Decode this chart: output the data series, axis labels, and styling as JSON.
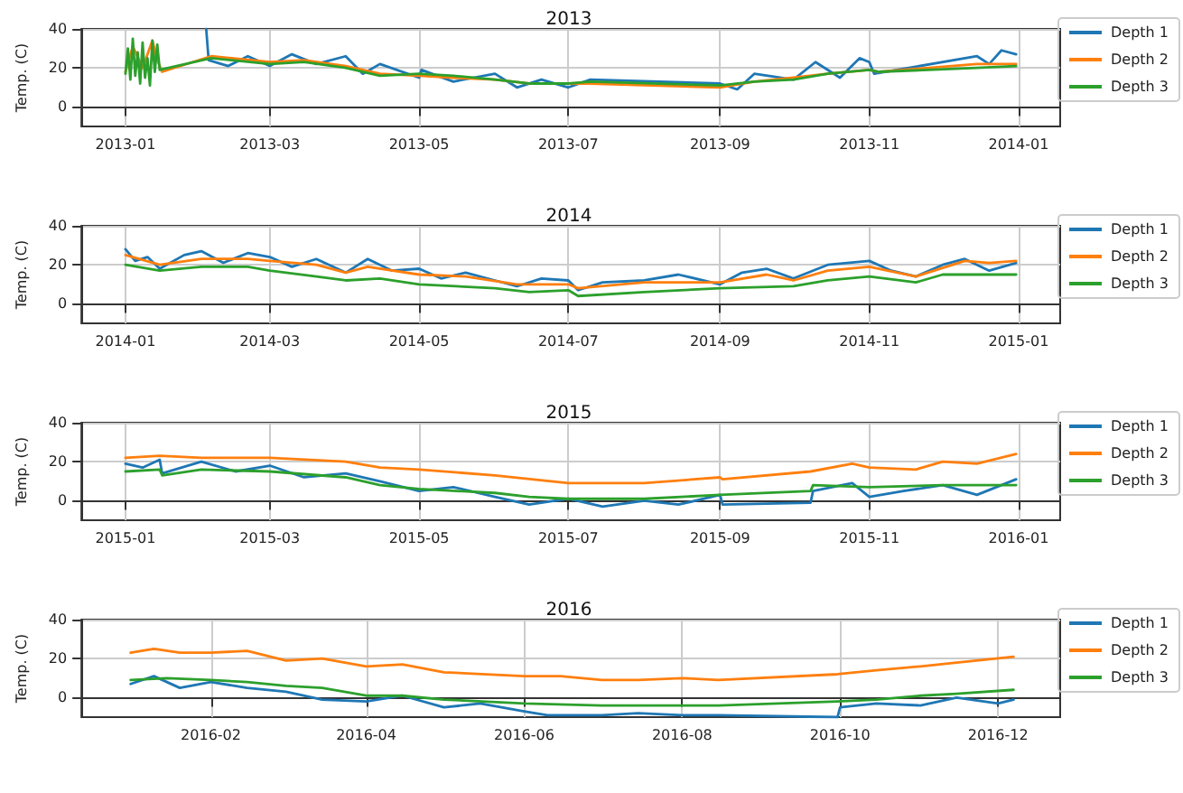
{
  "chart_data": [
    {
      "type": "line",
      "title": "2013",
      "ylabel": "Temp. (C)",
      "ylim": [
        -10,
        40
      ],
      "yticks": [
        0,
        20,
        40
      ],
      "xlim": [
        "2012-12-14",
        "2014-01-18"
      ],
      "xticks": [
        "2013-01",
        "2013-03",
        "2013-05",
        "2013-07",
        "2013-09",
        "2013-11",
        "2014-01"
      ],
      "grid": true,
      "legend": "right",
      "series": [
        {
          "name": "Depth 1",
          "color": "#1f77b4",
          "x": [
            "2013-02-03",
            "2013-02-04",
            "2013-02-12",
            "2013-02-20",
            "2013-03-01",
            "2013-03-10",
            "2013-03-20",
            "2013-04-01",
            "2013-04-08",
            "2013-04-15",
            "2013-05-01",
            "2013-05-02",
            "2013-05-15",
            "2013-06-01",
            "2013-06-10",
            "2013-06-20",
            "2013-07-01",
            "2013-07-10",
            "2013-09-01",
            "2013-09-08",
            "2013-09-15",
            "2013-10-01",
            "2013-10-10",
            "2013-10-20",
            "2013-10-28",
            "2013-11-01",
            "2013-11-03",
            "2013-12-15",
            "2013-12-20",
            "2013-12-25",
            "2013-12-31"
          ],
          "values": [
            40,
            24,
            21,
            26,
            21,
            27,
            22,
            26,
            17,
            22,
            15,
            19,
            13,
            17,
            10,
            14,
            10,
            14,
            12,
            9,
            17,
            14,
            23,
            15,
            25,
            23,
            17,
            26,
            22,
            29,
            27
          ]
        },
        {
          "name": "Depth 2",
          "color": "#ff7f0e",
          "x": [
            "2013-01-01",
            "2013-01-04",
            "2013-01-08",
            "2013-01-12",
            "2013-01-14",
            "2013-01-16",
            "2013-02-05",
            "2013-03-01",
            "2013-03-15",
            "2013-04-01",
            "2013-04-15",
            "2013-05-01",
            "2013-05-15",
            "2013-06-01",
            "2013-06-15",
            "2013-07-01",
            "2013-07-10",
            "2013-09-01",
            "2013-09-15",
            "2013-10-01",
            "2013-10-15",
            "2013-11-01",
            "2013-11-05",
            "2013-12-15",
            "2013-12-31"
          ],
          "values": [
            18,
            31,
            20,
            34,
            24,
            18,
            26,
            23,
            24,
            21,
            17,
            16,
            15,
            14,
            12,
            12,
            12,
            10,
            13,
            15,
            17,
            19,
            18,
            22,
            22
          ]
        },
        {
          "name": "Depth 3",
          "color": "#2ca02c",
          "x": [
            "2013-01-01",
            "2013-01-02",
            "2013-01-03",
            "2013-01-04",
            "2013-01-05",
            "2013-01-06",
            "2013-01-07",
            "2013-01-08",
            "2013-01-09",
            "2013-01-10",
            "2013-01-11",
            "2013-01-12",
            "2013-01-13",
            "2013-01-14",
            "2013-01-15",
            "2013-02-05",
            "2013-03-01",
            "2013-03-15",
            "2013-04-01",
            "2013-04-15",
            "2013-05-01",
            "2013-05-15",
            "2013-06-01",
            "2013-06-15",
            "2013-07-01",
            "2013-07-10",
            "2013-09-01",
            "2013-09-15",
            "2013-10-01",
            "2013-10-15",
            "2013-11-01",
            "2013-11-05",
            "2013-12-15",
            "2013-12-31"
          ],
          "values": [
            17,
            30,
            14,
            35,
            16,
            28,
            12,
            33,
            15,
            25,
            11,
            34,
            18,
            32,
            19,
            25,
            22,
            23,
            20,
            16,
            17,
            16,
            14,
            12,
            12,
            13,
            11,
            13,
            14,
            17,
            19,
            18,
            20,
            21
          ]
        }
      ]
    },
    {
      "type": "line",
      "title": "2014",
      "ylabel": "Temp. (C)",
      "ylim": [
        -10,
        40
      ],
      "yticks": [
        0,
        20,
        40
      ],
      "xlim": [
        "2013-12-14",
        "2015-01-18"
      ],
      "xticks": [
        "2014-01",
        "2014-03",
        "2014-05",
        "2014-07",
        "2014-09",
        "2014-11",
        "2015-01"
      ],
      "grid": true,
      "legend": "right",
      "series": [
        {
          "name": "Depth 1",
          "color": "#1f77b4",
          "x": [
            "2014-01-01",
            "2014-01-05",
            "2014-01-10",
            "2014-01-15",
            "2014-01-25",
            "2014-02-01",
            "2014-02-10",
            "2014-02-20",
            "2014-03-01",
            "2014-03-10",
            "2014-03-20",
            "2014-04-01",
            "2014-04-10",
            "2014-04-20",
            "2014-05-01",
            "2014-05-10",
            "2014-05-20",
            "2014-06-01",
            "2014-06-10",
            "2014-06-20",
            "2014-07-01",
            "2014-07-05",
            "2014-07-15",
            "2014-08-01",
            "2014-08-15",
            "2014-09-01",
            "2014-09-10",
            "2014-09-20",
            "2014-10-01",
            "2014-10-15",
            "2014-11-01",
            "2014-11-10",
            "2014-11-20",
            "2014-12-01",
            "2014-12-10",
            "2014-12-20",
            "2014-12-31"
          ],
          "values": [
            28,
            22,
            24,
            18,
            25,
            27,
            21,
            26,
            24,
            19,
            23,
            16,
            23,
            17,
            18,
            13,
            16,
            12,
            9,
            13,
            12,
            7,
            11,
            12,
            15,
            10,
            16,
            18,
            13,
            20,
            22,
            17,
            14,
            20,
            23,
            17,
            21
          ]
        },
        {
          "name": "Depth 2",
          "color": "#ff7f0e",
          "x": [
            "2014-01-01",
            "2014-01-15",
            "2014-02-01",
            "2014-02-20",
            "2014-03-01",
            "2014-03-20",
            "2014-04-01",
            "2014-04-10",
            "2014-05-01",
            "2014-05-20",
            "2014-06-10",
            "2014-07-01",
            "2014-07-05",
            "2014-08-01",
            "2014-09-01",
            "2014-09-20",
            "2014-10-01",
            "2014-10-15",
            "2014-11-01",
            "2014-11-20",
            "2014-12-10",
            "2014-12-20",
            "2014-12-31"
          ],
          "values": [
            25,
            20,
            23,
            23,
            22,
            20,
            16,
            19,
            15,
            14,
            10,
            10,
            8,
            11,
            11,
            15,
            12,
            17,
            19,
            14,
            22,
            21,
            22
          ]
        },
        {
          "name": "Depth 3",
          "color": "#2ca02c",
          "x": [
            "2014-01-01",
            "2014-01-15",
            "2014-02-01",
            "2014-02-20",
            "2014-03-01",
            "2014-03-20",
            "2014-04-01",
            "2014-04-15",
            "2014-05-01",
            "2014-06-01",
            "2014-06-15",
            "2014-07-01",
            "2014-07-05",
            "2014-08-01",
            "2014-09-01",
            "2014-10-01",
            "2014-10-15",
            "2014-11-01",
            "2014-11-20",
            "2014-12-01",
            "2014-12-31"
          ],
          "values": [
            20,
            17,
            19,
            19,
            17,
            14,
            12,
            13,
            10,
            8,
            6,
            7,
            4,
            6,
            8,
            9,
            12,
            14,
            11,
            15,
            15
          ]
        }
      ]
    },
    {
      "type": "line",
      "title": "2015",
      "ylabel": "Temp. (C)",
      "ylim": [
        -10,
        40
      ],
      "yticks": [
        0,
        20,
        40
      ],
      "xlim": [
        "2014-12-14",
        "2016-01-18"
      ],
      "xticks": [
        "2015-01",
        "2015-03",
        "2015-05",
        "2015-07",
        "2015-09",
        "2015-11",
        "2016-01"
      ],
      "grid": true,
      "legend": "right",
      "series": [
        {
          "name": "Depth 1",
          "color": "#1f77b4",
          "x": [
            "2015-01-01",
            "2015-01-08",
            "2015-01-15",
            "2015-01-16",
            "2015-02-01",
            "2015-02-15",
            "2015-03-01",
            "2015-03-15",
            "2015-04-01",
            "2015-04-15",
            "2015-05-01",
            "2015-05-15",
            "2015-06-01",
            "2015-06-15",
            "2015-07-01",
            "2015-07-15",
            "2015-08-01",
            "2015-08-15",
            "2015-09-01",
            "2015-09-02",
            "2015-10-08",
            "2015-10-09",
            "2015-10-25",
            "2015-11-01",
            "2015-11-15",
            "2015-12-01",
            "2015-12-15",
            "2015-12-31"
          ],
          "values": [
            19,
            17,
            21,
            14,
            20,
            15,
            18,
            12,
            14,
            10,
            5,
            7,
            2,
            -2,
            1,
            -3,
            0,
            -2,
            3,
            -2,
            -1,
            5,
            9,
            2,
            5,
            8,
            3,
            11
          ]
        },
        {
          "name": "Depth 2",
          "color": "#ff7f0e",
          "x": [
            "2015-01-01",
            "2015-01-15",
            "2015-02-01",
            "2015-03-01",
            "2015-04-01",
            "2015-04-15",
            "2015-05-01",
            "2015-06-01",
            "2015-07-01",
            "2015-08-01",
            "2015-09-01",
            "2015-09-02",
            "2015-10-08",
            "2015-10-25",
            "2015-11-01",
            "2015-11-20",
            "2015-12-01",
            "2015-12-15",
            "2015-12-31"
          ],
          "values": [
            22,
            23,
            22,
            22,
            20,
            17,
            16,
            13,
            9,
            9,
            12,
            11,
            15,
            19,
            17,
            16,
            20,
            19,
            24
          ]
        },
        {
          "name": "Depth 3",
          "color": "#2ca02c",
          "x": [
            "2015-01-01",
            "2015-01-15",
            "2015-01-16",
            "2015-02-01",
            "2015-03-01",
            "2015-04-01",
            "2015-04-15",
            "2015-05-01",
            "2015-06-01",
            "2015-06-15",
            "2015-07-01",
            "2015-08-01",
            "2015-09-01",
            "2015-10-08",
            "2015-10-09",
            "2015-11-01",
            "2015-12-01",
            "2015-12-31"
          ],
          "values": [
            15,
            16,
            13,
            16,
            15,
            12,
            8,
            6,
            4,
            2,
            1,
            1,
            3,
            5,
            8,
            7,
            8,
            8
          ]
        }
      ]
    },
    {
      "type": "line",
      "title": "2016",
      "ylabel": "Temp. (C)",
      "ylim": [
        -10,
        40
      ],
      "yticks": [
        0,
        20,
        40
      ],
      "xlim": [
        "2015-12-13",
        "2016-12-25"
      ],
      "xticks": [
        "2016-02",
        "2016-04",
        "2016-06",
        "2016-08",
        "2016-10",
        "2016-12"
      ],
      "grid": true,
      "legend": "right",
      "series": [
        {
          "name": "Depth 1",
          "color": "#1f77b4",
          "x": [
            "2016-01-01",
            "2016-01-10",
            "2016-01-20",
            "2016-02-01",
            "2016-02-15",
            "2016-03-01",
            "2016-03-15",
            "2016-04-01",
            "2016-04-15",
            "2016-05-01",
            "2016-05-15",
            "2016-06-01",
            "2016-06-10",
            "2016-07-01",
            "2016-07-15",
            "2016-08-01",
            "2016-08-15",
            "2016-09-30",
            "2016-10-01",
            "2016-10-15",
            "2016-11-01",
            "2016-11-15",
            "2016-12-01",
            "2016-12-07"
          ],
          "values": [
            7,
            11,
            5,
            8,
            5,
            3,
            -1,
            -2,
            1,
            -5,
            -3,
            -7,
            -9,
            -9,
            -8,
            -9,
            -9,
            -10,
            -5,
            -3,
            -4,
            0,
            -3,
            -1
          ]
        },
        {
          "name": "Depth 2",
          "color": "#ff7f0e",
          "x": [
            "2016-01-01",
            "2016-01-10",
            "2016-01-20",
            "2016-02-01",
            "2016-02-15",
            "2016-03-01",
            "2016-03-15",
            "2016-04-01",
            "2016-04-15",
            "2016-05-01",
            "2016-06-01",
            "2016-06-15",
            "2016-07-01",
            "2016-07-15",
            "2016-08-01",
            "2016-08-15",
            "2016-09-30",
            "2016-10-15",
            "2016-11-01",
            "2016-11-15",
            "2016-12-07"
          ],
          "values": [
            23,
            25,
            23,
            23,
            24,
            19,
            20,
            16,
            17,
            13,
            11,
            11,
            9,
            9,
            10,
            9,
            12,
            14,
            16,
            18,
            21
          ]
        },
        {
          "name": "Depth 3",
          "color": "#2ca02c",
          "x": [
            "2016-01-01",
            "2016-01-15",
            "2016-02-01",
            "2016-02-15",
            "2016-03-01",
            "2016-03-15",
            "2016-04-01",
            "2016-04-15",
            "2016-05-01",
            "2016-06-01",
            "2016-07-01",
            "2016-07-15",
            "2016-08-01",
            "2016-08-15",
            "2016-09-30",
            "2016-10-15",
            "2016-11-01",
            "2016-11-15",
            "2016-12-07"
          ],
          "values": [
            9,
            10,
            9,
            8,
            6,
            5,
            1,
            1,
            -1,
            -3,
            -4,
            -4,
            -4,
            -4,
            -2,
            -1,
            1,
            2,
            4
          ]
        }
      ]
    }
  ]
}
